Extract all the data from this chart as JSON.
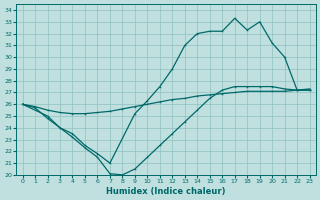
{
  "xlabel": "Humidex (Indice chaleur)",
  "bg_color": "#c0e0e0",
  "grid_color": "#90c0c0",
  "line_color": "#006868",
  "xlim": [
    -0.5,
    23.5
  ],
  "ylim": [
    20,
    34.5
  ],
  "xticks": [
    0,
    1,
    2,
    3,
    4,
    5,
    6,
    7,
    8,
    9,
    10,
    11,
    12,
    13,
    14,
    15,
    16,
    17,
    18,
    19,
    20,
    21,
    22,
    23
  ],
  "yticks": [
    20,
    21,
    22,
    23,
    24,
    25,
    26,
    27,
    28,
    29,
    30,
    31,
    32,
    33,
    34
  ],
  "line_top_x": [
    0,
    2,
    3,
    4,
    5,
    6,
    7,
    9,
    10,
    11,
    12,
    13,
    14,
    15,
    16,
    17,
    18,
    19,
    20,
    21,
    22,
    23
  ],
  "line_top_y": [
    26,
    25,
    24,
    23.5,
    22.5,
    21.8,
    21,
    25.2,
    26.3,
    27.5,
    29,
    31,
    32,
    32.2,
    32.2,
    33.3,
    32.3,
    33,
    31.2,
    30,
    27.2,
    27.3
  ],
  "line_mid_x": [
    0,
    1,
    2,
    3,
    4,
    5,
    6,
    7,
    8,
    9,
    10,
    11,
    12,
    13,
    14,
    15,
    16,
    17,
    18,
    19,
    20,
    21,
    22,
    23
  ],
  "line_mid_y": [
    26,
    25.8,
    25.5,
    25.3,
    25.2,
    25.2,
    25.3,
    25.4,
    25.6,
    25.8,
    26.0,
    26.2,
    26.4,
    26.5,
    26.7,
    26.8,
    26.9,
    27.0,
    27.1,
    27.1,
    27.1,
    27.1,
    27.2,
    27.2
  ],
  "line_bot_x": [
    0,
    1,
    2,
    3,
    4,
    5,
    6,
    7,
    8,
    9,
    10,
    11,
    12,
    13,
    14,
    15,
    16,
    17,
    18,
    19,
    20,
    21,
    22,
    23
  ],
  "line_bot_y": [
    26,
    25.7,
    24.8,
    24.0,
    23.2,
    22.3,
    21.5,
    20.1,
    20.0,
    20.5,
    21.5,
    22.5,
    23.5,
    24.5,
    25.5,
    26.5,
    27.2,
    27.5,
    27.5,
    27.5,
    27.5,
    27.3,
    27.2,
    27.2
  ]
}
